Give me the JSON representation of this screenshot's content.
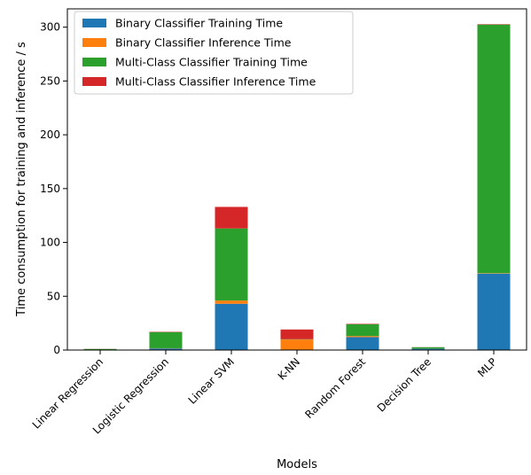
{
  "chart_data": {
    "type": "bar",
    "stacked": true,
    "title": "",
    "xlabel": "Models",
    "ylabel": "Time consumption for training and inference / s",
    "categories": [
      "Linear Regression",
      "Logistic Regression",
      "Linear SVM",
      "K-NN",
      "Random Forest",
      "Decision Tree",
      "MLP"
    ],
    "ylim": [
      0,
      317
    ],
    "yticks": [
      0,
      50,
      100,
      150,
      200,
      250,
      300
    ],
    "grid": false,
    "legend_position": "top-left",
    "series": [
      {
        "name": "Binary Classifier Training Time",
        "color": "#1f77b4",
        "values": [
          0.3,
          1.5,
          43,
          0.3,
          12,
          1.2,
          71
        ]
      },
      {
        "name": "Binary Classifier Inference Time",
        "color": "#ff7f0e",
        "values": [
          0.1,
          0.2,
          3,
          9.5,
          1,
          0.1,
          0.4
        ]
      },
      {
        "name": "Multi-Class Classifier Training Time",
        "color": "#2ca02c",
        "values": [
          0.6,
          15,
          67,
          0.3,
          11,
          1.3,
          231
        ]
      },
      {
        "name": "Multi-Class Classifier Inference Time",
        "color": "#d62728",
        "values": [
          0.1,
          0.3,
          20,
          9,
          0.4,
          0.1,
          0.4
        ]
      }
    ]
  }
}
